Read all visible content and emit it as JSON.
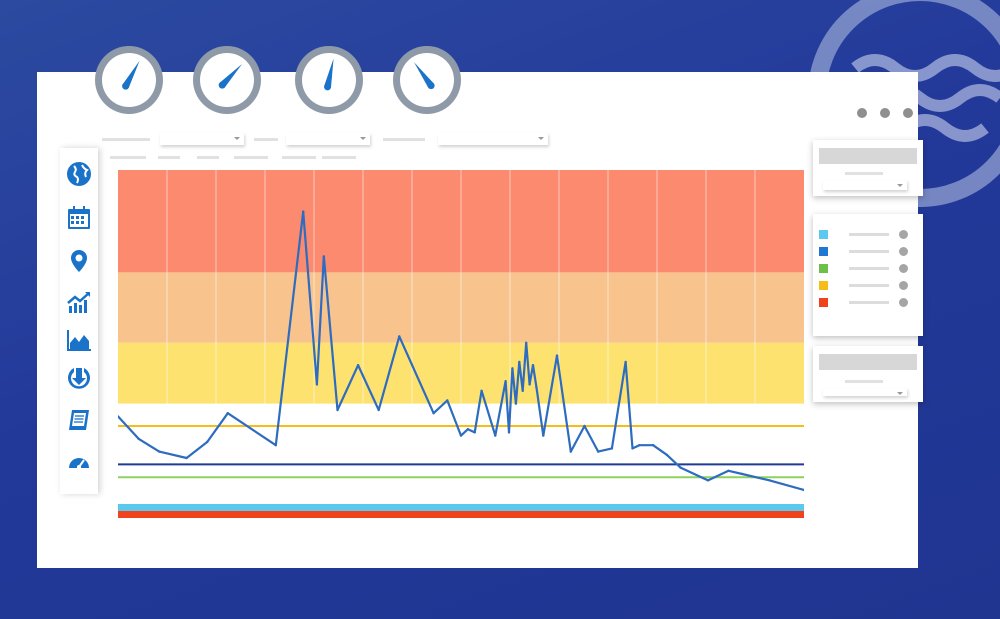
{
  "colors": {
    "background": "#23399a",
    "window": "#ffffff",
    "accent": "#1a73c9",
    "gauge_ring": "#8f9aa8",
    "band_high": "#fb8a6e",
    "band_elevated": "#f8c38d",
    "band_moderate": "#fee26f",
    "line_series": "#2d6cc0"
  },
  "gauges": [
    {
      "name": "gauge-1",
      "level": 0.62
    },
    {
      "name": "gauge-2",
      "level": 0.68
    },
    {
      "name": "gauge-3",
      "level": 0.55
    },
    {
      "name": "gauge-4",
      "level": 0.35
    }
  ],
  "sidebar": {
    "icons": [
      "globe-icon",
      "calendar-icon",
      "map-pin-icon",
      "trend-up-icon",
      "area-chart-icon",
      "download-icon",
      "notebook-icon",
      "speedometer-icon"
    ]
  },
  "legend": {
    "colors": [
      "#5bc8ee",
      "#1f78d1",
      "#6cc04a",
      "#f6bd16",
      "#f0431d"
    ]
  },
  "chart_data": {
    "type": "line",
    "title": "",
    "xlabel": "",
    "ylabel": "",
    "ylim": [
      0,
      100
    ],
    "grid": true,
    "bands": [
      {
        "from": 68,
        "to": 100,
        "color": "#fb8a6e"
      },
      {
        "from": 46,
        "to": 68,
        "color": "#f8c38d"
      },
      {
        "from": 27,
        "to": 46,
        "color": "#fee26f"
      }
    ],
    "thresholds": [
      {
        "value": 20,
        "color": "#f6bd16"
      },
      {
        "value": 8,
        "color": "#223a97"
      },
      {
        "value": 4,
        "color": "#8fd15e"
      }
    ],
    "status_bars": [
      "#5bc8ee",
      "#f0431d"
    ],
    "series": [
      {
        "x": [
          0,
          3,
          6,
          10,
          13,
          16,
          23,
          27,
          29,
          30,
          32,
          35,
          38,
          41,
          46,
          48,
          50,
          51,
          52,
          53,
          55,
          56.5,
          57,
          57.5,
          58,
          58.5,
          59,
          59.5,
          60,
          60.5,
          61,
          62,
          64,
          66,
          68,
          70,
          72,
          74,
          75,
          76,
          78,
          80,
          82,
          86,
          89,
          91,
          95,
          100
        ],
        "y": [
          23,
          16,
          12,
          10,
          15,
          24,
          14,
          87,
          33,
          73,
          25,
          39,
          25,
          48,
          24,
          28,
          17,
          19,
          18,
          31,
          17,
          34,
          18,
          38,
          27,
          40,
          31,
          46,
          33,
          39,
          32,
          17,
          42,
          12,
          20,
          12,
          13,
          40,
          13,
          14,
          14,
          11,
          7,
          3,
          6,
          5,
          3,
          0
        ]
      }
    ]
  }
}
